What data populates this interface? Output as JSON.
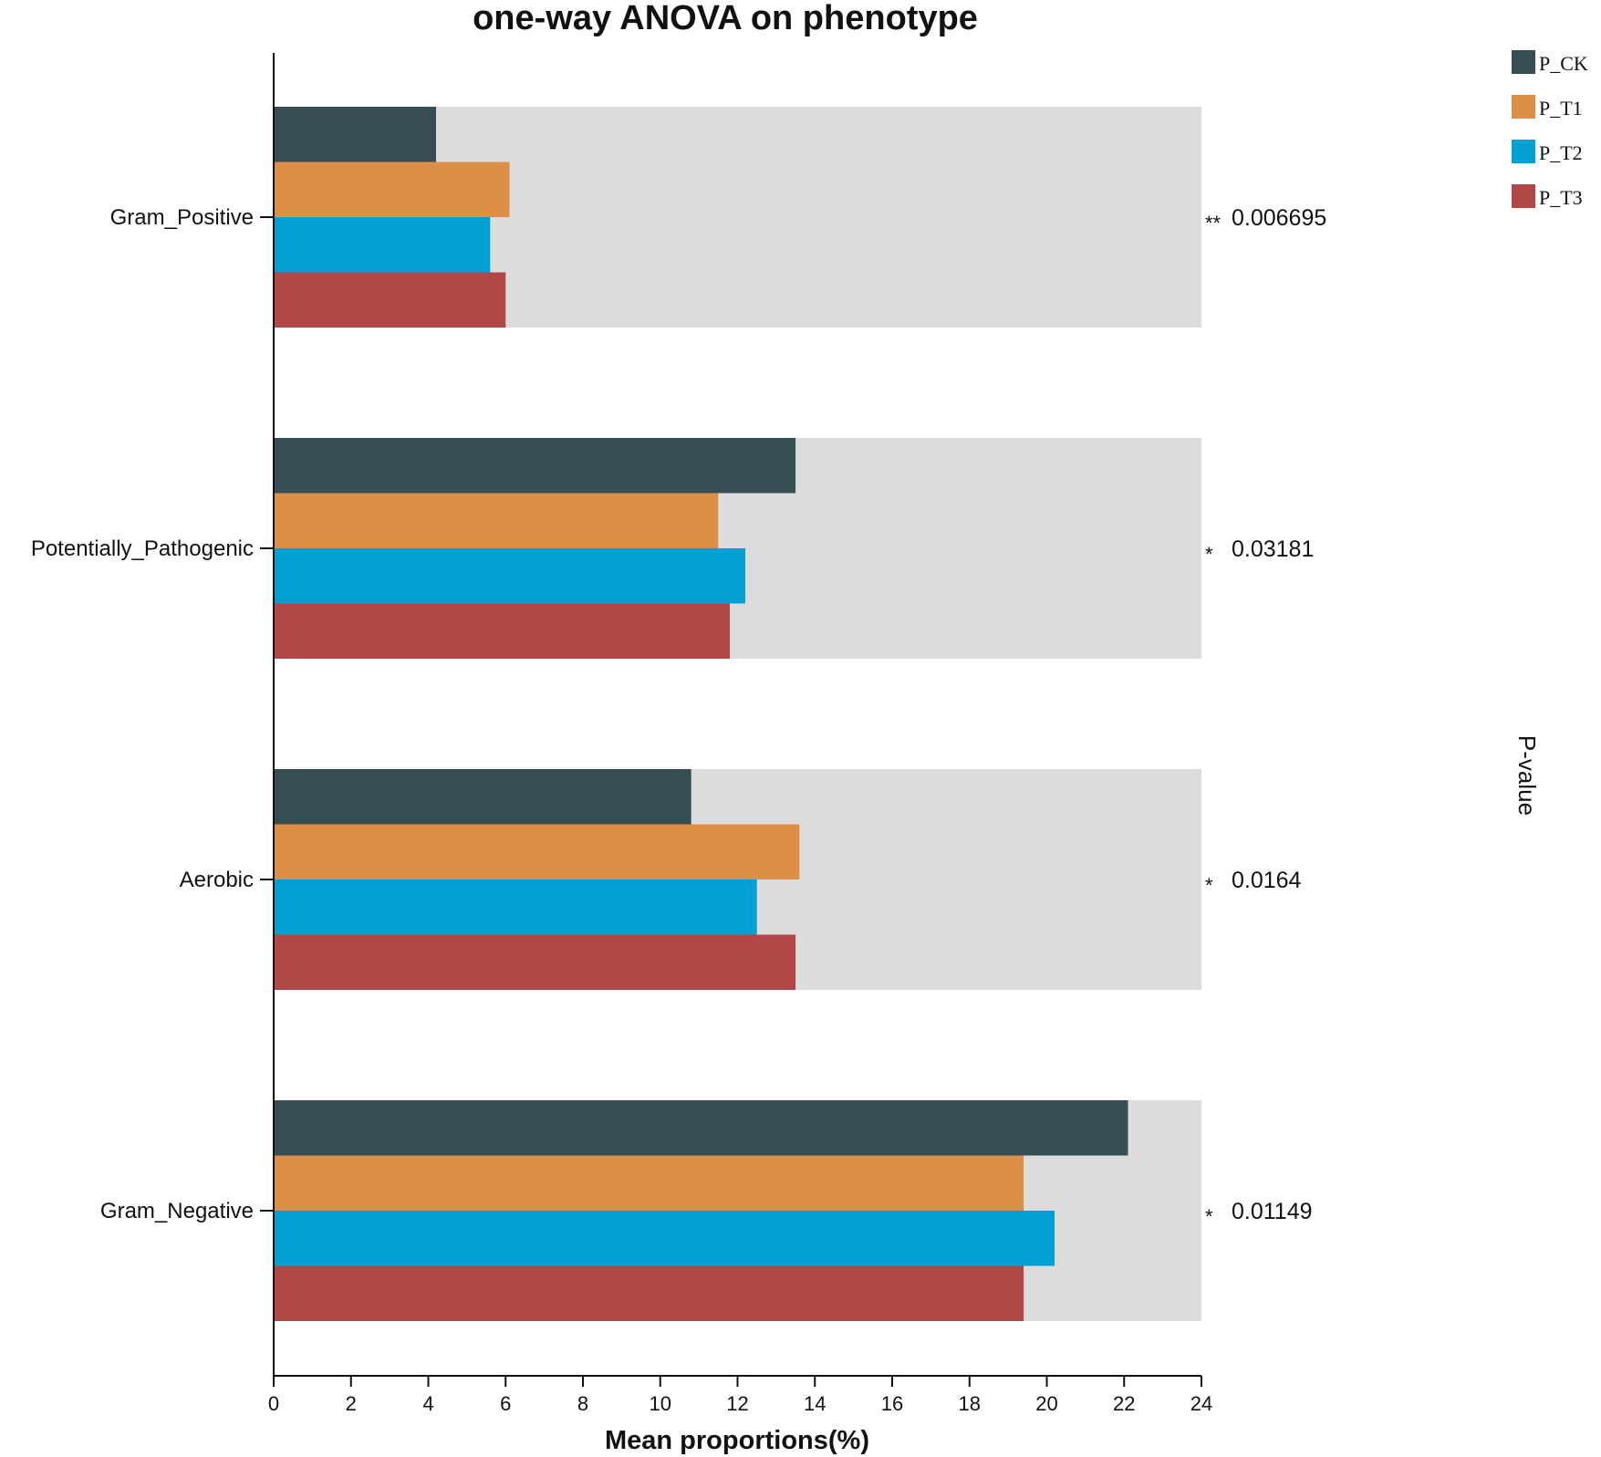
{
  "chart_data": {
    "type": "bar",
    "orientation": "horizontal",
    "title": "one-way ANOVA on phenotype",
    "xlabel": "Mean proportions(%)",
    "right_label": "P-value",
    "xlim": [
      0,
      24
    ],
    "xticks": [
      "0",
      "2",
      "4",
      "6",
      "8",
      "10",
      "12",
      "14",
      "16",
      "18",
      "20",
      "22",
      "24"
    ],
    "categories": [
      "Gram_Positive",
      "Potentially_Pathogenic",
      "Aerobic",
      "Gram_Negative"
    ],
    "series": [
      {
        "name": "P_CK",
        "color": "#374d54",
        "values": [
          4.2,
          13.5,
          10.8,
          22.1
        ]
      },
      {
        "name": "P_T1",
        "color": "#de8f47",
        "values": [
          6.1,
          11.5,
          13.6,
          19.4
        ]
      },
      {
        "name": "P_T2",
        "color": "#00a0d2",
        "values": [
          5.6,
          12.2,
          12.5,
          20.2
        ]
      },
      {
        "name": "P_T3",
        "color": "#b14747",
        "values": [
          6.0,
          11.8,
          13.5,
          19.4
        ]
      }
    ],
    "significance": [
      "**",
      "*",
      "*",
      "*"
    ],
    "p_values": [
      "0.006695",
      "0.03181",
      "0.0164",
      "0.01149"
    ],
    "background_bar_color": "#dcdcdc",
    "legend_position": "top-right",
    "grid": false
  }
}
